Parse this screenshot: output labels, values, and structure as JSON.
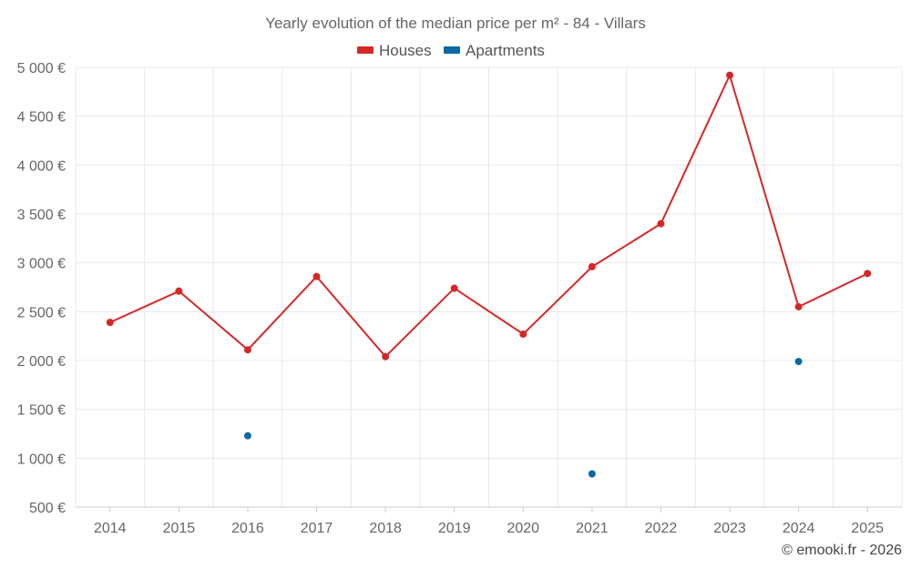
{
  "chart_data": {
    "type": "line",
    "title": "Yearly evolution of the median price per m² - 84 - Villars",
    "x": [
      "2014",
      "2015",
      "2016",
      "2017",
      "2018",
      "2019",
      "2020",
      "2021",
      "2022",
      "2023",
      "2024",
      "2025"
    ],
    "series": [
      {
        "name": "Houses",
        "color": "#d62728",
        "style": "line+markers",
        "values": [
          2390,
          2710,
          2110,
          2860,
          2040,
          2740,
          2270,
          2960,
          3400,
          4920,
          2550,
          2890
        ]
      },
      {
        "name": "Apartments",
        "color": "#0a6aa1",
        "style": "markers",
        "values": [
          null,
          null,
          1230,
          null,
          null,
          null,
          null,
          840,
          null,
          null,
          1990,
          null
        ]
      }
    ],
    "ylim": [
      500,
      5000
    ],
    "yticks": [
      500,
      1000,
      1500,
      2000,
      2500,
      3000,
      3500,
      4000,
      4500,
      5000
    ],
    "ytick_labels": [
      "500 €",
      "1 000 €",
      "1 500 €",
      "2 000 €",
      "2 500 €",
      "3 000 €",
      "3 500 €",
      "4 000 €",
      "4 500 €",
      "5 000 €"
    ],
    "grid": true,
    "legend_position": "top-center",
    "credit": "© emooki.fr - 2026"
  }
}
